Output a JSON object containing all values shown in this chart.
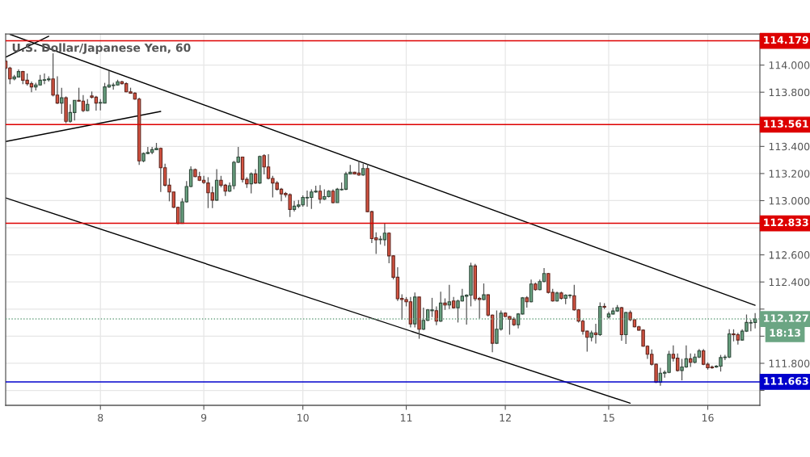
{
  "chart_data": {
    "type": "candlestick",
    "title": "U.S. Dollar/Japanese Yen, 60",
    "ylim": [
      111.49,
      114.23
    ],
    "yticks": [
      {
        "value": 111.6,
        "label": null
      },
      {
        "value": 111.8,
        "label": "111.800"
      },
      {
        "value": 112.0,
        "label": null
      },
      {
        "value": 112.2,
        "label": null
      },
      {
        "value": 112.4,
        "label": "112.400"
      },
      {
        "value": 112.6,
        "label": "112.600"
      },
      {
        "value": 112.8,
        "label": null
      },
      {
        "value": 113.0,
        "label": "113.000"
      },
      {
        "value": 113.2,
        "label": "113.200"
      },
      {
        "value": 113.4,
        "label": "113.400"
      },
      {
        "value": 113.6,
        "label": null
      },
      {
        "value": 113.8,
        "label": "113.800"
      },
      {
        "value": 114.0,
        "label": "114.000"
      }
    ],
    "grid": true,
    "categories": [
      null,
      null,
      null,
      null,
      null,
      null,
      null,
      null,
      null,
      null,
      null,
      null,
      null,
      null,
      null,
      null,
      null,
      null,
      null,
      null,
      null,
      null,
      "8",
      null,
      null,
      null,
      null,
      null,
      null,
      null,
      null,
      null,
      null,
      null,
      null,
      null,
      null,
      null,
      null,
      null,
      null,
      null,
      null,
      null,
      null,
      null,
      "9",
      null,
      null,
      null,
      null,
      null,
      null,
      null,
      null,
      null,
      null,
      null,
      null,
      null,
      null,
      null,
      null,
      null,
      null,
      null,
      null,
      null,
      null,
      "10",
      null,
      null,
      null,
      null,
      null,
      null,
      null,
      null,
      null,
      null,
      null,
      null,
      null,
      null,
      null,
      null,
      null,
      null,
      null,
      null,
      null,
      null,
      null,
      "11",
      null,
      null,
      null,
      null,
      null,
      null,
      null,
      null,
      null,
      null,
      null,
      null,
      null,
      null,
      null,
      null,
      null,
      null,
      null,
      null,
      null,
      null,
      "12",
      null,
      null,
      null,
      null,
      null,
      null,
      null,
      null,
      null,
      null,
      null,
      null,
      null,
      null,
      null,
      null,
      null,
      null,
      null,
      null,
      null,
      null,
      null,
      "15",
      null,
      null,
      null,
      null,
      null,
      null,
      null,
      null,
      null,
      null,
      null,
      null,
      null,
      null,
      null,
      null,
      null,
      null,
      null,
      null,
      null,
      null,
      "16",
      null,
      null,
      null,
      null,
      null,
      null,
      null,
      null,
      null,
      null,
      null
    ],
    "colors": [
      "#d75442",
      "#d75442",
      "#6ba583",
      "#6ba583",
      "#d75442",
      "#d75442",
      "#d75442",
      "#6ba583",
      "#6ba583",
      "#6ba583",
      "#6ba583",
      "#d75442",
      "#d75442",
      "#6ba583",
      "#d75442",
      "#6ba583",
      "#6ba583",
      "#d75442",
      "#d75442",
      "#6ba583",
      "#d75442",
      "#d75442",
      "#6ba583",
      "#6ba583",
      "#6ba583",
      "#6ba583",
      "#6ba583",
      "#d75442",
      "#d75442",
      "#d75442",
      "#d75442",
      "#d75442",
      "#6ba583",
      "#6ba583",
      "#6ba583",
      "#6ba583",
      "#d75442",
      "#d75442",
      "#d75442",
      "#d75442",
      "#d75442",
      "#6ba583",
      "#6ba583",
      "#6ba583",
      "#d75442",
      "#d75442",
      "#d75442",
      "#d75442",
      "#d75442",
      "#6ba583",
      "#d75442",
      "#d75442",
      "#6ba583",
      "#6ba583",
      "#6ba583",
      "#d75442",
      "#d75442",
      "#6ba583",
      "#d75442",
      "#6ba583",
      "#d75442",
      "#d75442",
      "#d75442",
      "#d75442",
      "#d75442",
      "#d75442",
      "#d75442",
      "#6ba583",
      "#6ba583",
      "#6ba583",
      "#6ba583",
      "#6ba583",
      "#6ba583",
      "#d75442",
      "#6ba583",
      "#6ba583",
      "#d75442",
      "#6ba583",
      "#6ba583",
      "#6ba583",
      "#6ba583",
      "#d75442",
      "#d75442",
      "#6ba583",
      "#d75442",
      "#d75442",
      "#d75442",
      "#6ba583",
      "#6ba583",
      "#d75442",
      "#d75442",
      "#d75442",
      "#d75442",
      "#d75442",
      "#d75442",
      "#6ba583",
      "#d75442",
      "#6ba583",
      "#6ba583",
      "#6ba583",
      "#d75442",
      "#6ba583",
      "#d75442",
      "#6ba583",
      "#d75442",
      "#6ba583",
      "#6ba583",
      "#6ba583",
      "#6ba583",
      "#d75442",
      "#d75442",
      "#6ba583",
      "#d75442",
      "#d75442",
      "#6ba583",
      "#6ba583",
      "#d75442",
      "#d75442",
      "#d75442",
      "#6ba583",
      "#6ba583",
      "#d75442",
      "#6ba583",
      "#d75442",
      "#6ba583",
      "#6ba583",
      "#d75442",
      "#d75442",
      "#6ba583",
      "#d75442",
      "#6ba583",
      "#6ba583",
      "#d75442",
      "#d75442",
      "#d75442",
      "#d75442",
      "#6ba583",
      "#d75442",
      "#6ba583",
      "#d75442",
      "#6ba583",
      "#6ba583",
      "#6ba583",
      "#d75442",
      "#6ba583",
      "#d75442",
      "#d75442",
      "#d75442",
      "#d75442",
      "#d75442",
      "#d75442",
      "#d75442",
      "#6ba583",
      "#6ba583",
      "#6ba583",
      "#d75442",
      "#d75442",
      "#6ba583",
      "#6ba583",
      "#d75442",
      "#6ba583",
      "#6ba583",
      "#d75442",
      "#d75442",
      "#d75442",
      "#6ba583",
      "#6ba583",
      "#6ba583",
      "#6ba583",
      "#d75442",
      "#d75442",
      "#6ba583",
      "#6ba583",
      "#6ba583",
      "#6ba583"
    ],
    "ohlc": [
      [
        114.028,
        114.038,
        113.968,
        113.978
      ],
      [
        113.978,
        113.988,
        113.859,
        113.898
      ],
      [
        113.898,
        113.928,
        113.888,
        113.912
      ],
      [
        113.912,
        113.968,
        113.908,
        113.952
      ],
      [
        113.952,
        113.958,
        113.859,
        113.888
      ],
      [
        113.888,
        113.938,
        113.849,
        113.863
      ],
      [
        113.863,
        113.879,
        113.799,
        113.839
      ],
      [
        113.839,
        113.869,
        113.813,
        113.853
      ],
      [
        113.853,
        113.928,
        113.849,
        113.888
      ],
      [
        113.888,
        113.938,
        113.859,
        113.892
      ],
      [
        113.892,
        113.918,
        113.879,
        113.898
      ],
      [
        113.898,
        114.087,
        113.769,
        113.779
      ],
      [
        113.779,
        113.918,
        113.714,
        113.72
      ],
      [
        113.72,
        113.833,
        113.64,
        113.759
      ],
      [
        113.759,
        113.769,
        113.571,
        113.585
      ],
      [
        113.585,
        113.71,
        113.575,
        113.65
      ],
      [
        113.65,
        113.74,
        113.591,
        113.74
      ],
      [
        113.74,
        113.833,
        113.73,
        113.734
      ],
      [
        113.734,
        113.779,
        113.654,
        113.664
      ],
      [
        113.664,
        113.749,
        113.66,
        113.71
      ],
      [
        113.773,
        113.805,
        113.753,
        113.763
      ],
      [
        113.763,
        113.773,
        113.664,
        113.72
      ],
      [
        113.72,
        113.749,
        113.666,
        113.724
      ],
      [
        113.72,
        113.869,
        113.72,
        113.839
      ],
      [
        113.839,
        113.958,
        113.833,
        113.853
      ],
      [
        113.849,
        113.869,
        113.819,
        113.853
      ],
      [
        113.853,
        113.892,
        113.849,
        113.877
      ],
      [
        113.877,
        113.884,
        113.857,
        113.863
      ],
      [
        113.863,
        113.873,
        113.799,
        113.803
      ],
      [
        113.803,
        113.833,
        113.789,
        113.793
      ],
      [
        113.793,
        113.799,
        113.745,
        113.749
      ],
      [
        113.749,
        113.759,
        113.263,
        113.293
      ],
      [
        113.293,
        113.356,
        113.283,
        113.348
      ],
      [
        113.348,
        113.396,
        113.342,
        113.356
      ],
      [
        113.356,
        113.396,
        113.342,
        113.376
      ],
      [
        113.376,
        113.426,
        113.372,
        113.386
      ],
      [
        113.386,
        113.392,
        113.064,
        113.243
      ],
      [
        113.243,
        113.273,
        113.104,
        113.114
      ],
      [
        113.114,
        113.164,
        112.995,
        113.064
      ],
      [
        113.064,
        113.064,
        112.945,
        112.951
      ],
      [
        112.951,
        112.955,
        112.826,
        112.832
      ],
      [
        112.832,
        113.018,
        112.832,
        112.991
      ],
      [
        112.991,
        113.144,
        112.985,
        113.104
      ],
      [
        113.104,
        113.253,
        113.098,
        113.229
      ],
      [
        113.229,
        113.237,
        113.173,
        113.177
      ],
      [
        113.177,
        113.213,
        113.144,
        113.15
      ],
      [
        113.15,
        113.183,
        113.124,
        113.134
      ],
      [
        113.13,
        113.173,
        112.945,
        113.058
      ],
      [
        113.058,
        113.104,
        112.945,
        113.004
      ],
      [
        113.004,
        113.233,
        112.998,
        113.15
      ],
      [
        113.15,
        113.183,
        113.098,
        113.114
      ],
      [
        113.114,
        113.124,
        113.034,
        113.07
      ],
      [
        113.07,
        113.134,
        113.064,
        113.11
      ],
      [
        113.11,
        113.293,
        113.084,
        113.283
      ],
      [
        113.283,
        113.396,
        113.277,
        113.322
      ],
      [
        113.322,
        113.322,
        113.134,
        113.157
      ],
      [
        113.157,
        113.173,
        113.094,
        113.124
      ],
      [
        113.124,
        113.209,
        113.054,
        113.197
      ],
      [
        113.197,
        113.233,
        113.124,
        113.13
      ],
      [
        113.13,
        113.332,
        113.124,
        113.326
      ],
      [
        113.332,
        113.342,
        113.193,
        113.249
      ],
      [
        113.249,
        113.342,
        113.157,
        113.164
      ],
      [
        113.164,
        113.183,
        113.024,
        113.13
      ],
      [
        113.13,
        113.144,
        113.074,
        113.084
      ],
      [
        113.084,
        113.094,
        112.995,
        113.05
      ],
      [
        113.054,
        113.064,
        113.024,
        113.044
      ],
      [
        113.044,
        113.054,
        112.879,
        112.935
      ],
      [
        112.935,
        112.998,
        112.919,
        112.959
      ],
      [
        112.959,
        113.004,
        112.945,
        112.969
      ],
      [
        112.969,
        113.038,
        112.955,
        113.024
      ],
      [
        113.02,
        113.074,
        112.955,
        113.024
      ],
      [
        113.024,
        113.084,
        112.939,
        113.064
      ],
      [
        113.064,
        113.11,
        113.058,
        113.07
      ],
      [
        113.07,
        113.114,
        112.979,
        113.01
      ],
      [
        113.01,
        113.084,
        113.004,
        113.03
      ],
      [
        113.03,
        113.078,
        113.024,
        113.07
      ],
      [
        113.07,
        113.084,
        112.979,
        112.985
      ],
      [
        112.985,
        113.094,
        112.985,
        113.084
      ],
      [
        113.08,
        113.134,
        113.074,
        113.084
      ],
      [
        113.084,
        113.213,
        113.078,
        113.197
      ],
      [
        113.197,
        113.263,
        113.193,
        113.209
      ],
      [
        113.209,
        113.213,
        113.193,
        113.197
      ],
      [
        113.203,
        113.293,
        113.183,
        113.189
      ],
      [
        113.189,
        113.273,
        113.183,
        113.237
      ],
      [
        113.237,
        113.269,
        112.915,
        112.919
      ],
      [
        112.919,
        112.925,
        112.687,
        112.72
      ],
      [
        112.726,
        112.766,
        112.607,
        112.712
      ],
      [
        112.712,
        112.74,
        112.677,
        112.716
      ],
      [
        112.712,
        112.836,
        112.667,
        112.76
      ],
      [
        112.76,
        112.766,
        112.538,
        112.593
      ],
      [
        112.593,
        112.597,
        112.419,
        112.435
      ],
      [
        112.435,
        112.508,
        112.26,
        112.276
      ],
      [
        112.279,
        112.309,
        112.121,
        112.27
      ],
      [
        112.27,
        112.289,
        112.22,
        112.254
      ],
      [
        112.254,
        112.289,
        112.065,
        112.091
      ],
      [
        112.091,
        112.323,
        112.065,
        112.289
      ],
      [
        112.289,
        112.289,
        111.981,
        112.051
      ],
      [
        112.051,
        112.21,
        112.045,
        112.117
      ],
      [
        112.117,
        112.2,
        112.111,
        112.194
      ],
      [
        112.188,
        112.283,
        112.141,
        112.194
      ],
      [
        112.188,
        112.22,
        112.081,
        112.111
      ],
      [
        112.111,
        112.329,
        112.105,
        112.244
      ],
      [
        112.244,
        112.279,
        112.194,
        112.23
      ],
      [
        112.23,
        112.379,
        112.2,
        112.254
      ],
      [
        112.26,
        112.289,
        112.204,
        112.21
      ],
      [
        112.21,
        112.27,
        112.101,
        112.26
      ],
      [
        112.26,
        112.349,
        112.256,
        112.295
      ],
      [
        112.295,
        112.309,
        112.085,
        112.303
      ],
      [
        112.303,
        112.542,
        112.22,
        112.518
      ],
      [
        112.518,
        112.534,
        112.26,
        112.276
      ],
      [
        112.279,
        112.289,
        112.131,
        112.27
      ],
      [
        112.27,
        112.389,
        112.264,
        112.305
      ],
      [
        112.305,
        112.309,
        112.145,
        112.156
      ],
      [
        112.156,
        112.16,
        111.882,
        111.948
      ],
      [
        111.948,
        112.19,
        111.942,
        112.051
      ],
      [
        112.051,
        112.19,
        112.041,
        112.17
      ],
      [
        112.17,
        112.176,
        112.141,
        112.145
      ],
      [
        112.145,
        112.15,
        112.011,
        112.125
      ],
      [
        112.125,
        112.141,
        112.075,
        112.085
      ],
      [
        112.085,
        112.17,
        112.057,
        112.164
      ],
      [
        112.164,
        112.289,
        112.16,
        112.283
      ],
      [
        112.283,
        112.295,
        112.21,
        112.254
      ],
      [
        112.254,
        112.418,
        112.25,
        112.385
      ],
      [
        112.385,
        112.395,
        112.335,
        112.343
      ],
      [
        112.343,
        112.418,
        112.339,
        112.403
      ],
      [
        112.403,
        112.502,
        112.399,
        112.462
      ],
      [
        112.462,
        112.466,
        112.315,
        112.323
      ],
      [
        112.323,
        112.349,
        112.256,
        112.26
      ],
      [
        112.26,
        112.329,
        112.256,
        112.319
      ],
      [
        112.319,
        112.329,
        112.27,
        112.279
      ],
      [
        112.279,
        112.309,
        112.236,
        112.303
      ],
      [
        112.299,
        112.309,
        112.279,
        112.303
      ],
      [
        112.299,
        112.379,
        112.188,
        112.194
      ],
      [
        112.194,
        112.2,
        112.101,
        112.111
      ],
      [
        112.111,
        112.121,
        112.011,
        112.037
      ],
      [
        112.037,
        112.041,
        111.886,
        111.992
      ],
      [
        111.992,
        112.041,
        111.962,
        112.025
      ],
      [
        112.025,
        112.091,
        111.946,
        112.011
      ],
      [
        112.011,
        112.25,
        112.002,
        112.22
      ],
      [
        112.22,
        112.244,
        112.2,
        112.214
      ],
      [
        112.141,
        112.18,
        112.131,
        112.164
      ],
      [
        112.164,
        112.21,
        112.16,
        112.186
      ],
      [
        112.186,
        112.23,
        112.18,
        112.21
      ],
      [
        112.21,
        112.216,
        111.966,
        112.011
      ],
      [
        112.011,
        112.18,
        111.942,
        112.174
      ],
      [
        112.174,
        112.19,
        112.111,
        112.121
      ],
      [
        112.121,
        112.125,
        112.065,
        112.069
      ],
      [
        112.069,
        112.077,
        112.041,
        112.045
      ],
      [
        112.045,
        112.051,
        111.922,
        111.926
      ],
      [
        111.926,
        111.932,
        111.833,
        111.867
      ],
      [
        111.867,
        111.902,
        111.783,
        111.793
      ],
      [
        111.793,
        111.799,
        111.654,
        111.66
      ],
      [
        111.66,
        111.767,
        111.634,
        111.727
      ],
      [
        111.727,
        111.747,
        111.694,
        111.733
      ],
      [
        111.733,
        111.892,
        111.727,
        111.867
      ],
      [
        111.867,
        111.932,
        111.813,
        111.838
      ],
      [
        111.838,
        111.872,
        111.739,
        111.747
      ],
      [
        111.747,
        111.833,
        111.674,
        111.773
      ],
      [
        111.773,
        111.932,
        111.767,
        111.833
      ],
      [
        111.833,
        111.872,
        111.773,
        111.807
      ],
      [
        111.807,
        111.872,
        111.799,
        111.846
      ],
      [
        111.846,
        111.906,
        111.838,
        111.892
      ],
      [
        111.892,
        111.906,
        111.787,
        111.793
      ],
      [
        111.793,
        111.807,
        111.753,
        111.767
      ],
      [
        111.773,
        111.783,
        111.759,
        111.767
      ],
      [
        111.773,
        111.787,
        111.767,
        111.779
      ],
      [
        111.779,
        111.862,
        111.739,
        111.842
      ],
      [
        111.842,
        111.862,
        111.823,
        111.846
      ],
      [
        111.846,
        112.051,
        111.838,
        112.017
      ],
      [
        112.017,
        112.051,
        111.962,
        112.011
      ],
      [
        112.011,
        112.025,
        111.938,
        111.972
      ],
      [
        111.972,
        112.051,
        111.966,
        112.037
      ],
      [
        112.037,
        112.16,
        112.031,
        112.101
      ],
      [
        112.097,
        112.121,
        112.037,
        112.101
      ],
      [
        112.101,
        112.17,
        112.057,
        112.127
      ]
    ],
    "series": [
      {
        "type": "line",
        "color": "#000000",
        "values": [
          null,
          114.227,
          null,
          null,
          null,
          null,
          null,
          null,
          null,
          null,
          null,
          null,
          null,
          null,
          null,
          null,
          null,
          null,
          null,
          null,
          null,
          null,
          null,
          null,
          null,
          null,
          null,
          null,
          null,
          null,
          null,
          null,
          null,
          null,
          null,
          null,
          null,
          null,
          null,
          null,
          null,
          null,
          null,
          null,
          null,
          null,
          null,
          null,
          null,
          null,
          null,
          null,
          null,
          null,
          null,
          null,
          null,
          null,
          null,
          null,
          null,
          null,
          null,
          null,
          null,
          null,
          null,
          null,
          null,
          null,
          null,
          null,
          null,
          null,
          null,
          null,
          null,
          null,
          null,
          null,
          null,
          null,
          null,
          null,
          null,
          null,
          null,
          null,
          null,
          null,
          null,
          null,
          null,
          null,
          null,
          null,
          null,
          null,
          null,
          null,
          null,
          null,
          null,
          null,
          null,
          null,
          null,
          null,
          null,
          null,
          null,
          null,
          null,
          null,
          null,
          null,
          null,
          null,
          null,
          null,
          null,
          null,
          null,
          null,
          null,
          null,
          null,
          null,
          null,
          null,
          null,
          null,
          null,
          null,
          null,
          null,
          null,
          null,
          null,
          null,
          null,
          null,
          null,
          null,
          null,
          null,
          null,
          null,
          null,
          null,
          null,
          null,
          null,
          null,
          null,
          null,
          null,
          null,
          null,
          null,
          null,
          null,
          null,
          null,
          null,
          null,
          null,
          null,
          null,
          null,
          null,
          null,
          null,
          null,
          112.228
        ]
      },
      {
        "type": "line",
        "color": "#000000",
        "values": [
          113.02,
          null,
          null,
          null,
          null,
          null,
          null,
          null,
          null,
          null,
          null,
          null,
          null,
          null,
          null,
          null,
          null,
          null,
          null,
          null,
          null,
          null,
          null,
          null,
          null,
          null,
          null,
          null,
          null,
          null,
          null,
          null,
          null,
          null,
          null,
          null,
          null,
          null,
          null,
          null,
          null,
          null,
          null,
          null,
          null,
          null,
          null,
          null,
          null,
          null,
          null,
          null,
          null,
          null,
          null,
          null,
          null,
          null,
          null,
          null,
          null,
          null,
          null,
          null,
          null,
          null,
          null,
          null,
          null,
          null,
          null,
          null,
          null,
          null,
          null,
          null,
          null,
          null,
          null,
          null,
          null,
          null,
          null,
          null,
          null,
          null,
          null,
          null,
          null,
          null,
          null,
          null,
          null,
          null,
          null,
          null,
          null,
          null,
          null,
          null,
          null,
          null,
          null,
          null,
          null,
          null,
          null,
          null,
          null,
          null,
          null,
          null,
          null,
          null,
          null,
          null,
          null,
          null,
          null,
          null,
          null,
          null,
          null,
          null,
          null,
          null,
          null,
          null,
          null,
          null,
          null,
          null,
          null,
          null,
          null,
          null,
          null,
          null,
          null,
          null,
          null,
          null,
          null,
          null,
          null,
          111.506,
          null,
          null,
          null,
          null,
          null,
          null,
          null,
          null,
          null,
          null,
          null,
          null,
          null,
          null,
          null,
          null,
          null,
          null,
          null,
          null,
          null,
          null,
          null,
          null,
          null,
          null,
          null,
          null,
          null
        ]
      },
      {
        "type": "line",
        "color": "#000000",
        "values": [
          113.436,
          null,
          null,
          null,
          null,
          null,
          null,
          null,
          null,
          null,
          null,
          null,
          null,
          null,
          null,
          null,
          null,
          null,
          null,
          null,
          null,
          null,
          null,
          null,
          null,
          null,
          null,
          null,
          null,
          null,
          null,
          null,
          null,
          null,
          null,
          null,
          113.658,
          null,
          null,
          null,
          null,
          null,
          null,
          null,
          null,
          null,
          null,
          null,
          null,
          null,
          null,
          null,
          null,
          null,
          null,
          null,
          null,
          null,
          null,
          null,
          null,
          null,
          null,
          null,
          null,
          null,
          null,
          null,
          null,
          null,
          null,
          null,
          null,
          null,
          null,
          null,
          null,
          null,
          null,
          null,
          null,
          null,
          null,
          null,
          null,
          null,
          null,
          null,
          null,
          null,
          null,
          null,
          null,
          null,
          null,
          null,
          null,
          null,
          null,
          null,
          null,
          null,
          null,
          null,
          null,
          null,
          null,
          null,
          null,
          null,
          null,
          null,
          null,
          null,
          null,
          null,
          null,
          null,
          null,
          null,
          null,
          null,
          null,
          null,
          null,
          null,
          null,
          null,
          null,
          null,
          null,
          null,
          null,
          null,
          null,
          null,
          null,
          null,
          null,
          null,
          null,
          null,
          null,
          null,
          null,
          null,
          null,
          null,
          null,
          null,
          null,
          null,
          null,
          null,
          null,
          null,
          null,
          null,
          null,
          null,
          null,
          null,
          null,
          null,
          null,
          null,
          null,
          null,
          null,
          null,
          null,
          null,
          null,
          null,
          null
        ]
      },
      {
        "type": "line",
        "color": "#000000",
        "values": [
          114.058,
          null,
          null,
          null,
          null,
          null,
          null,
          null,
          null,
          null,
          114.213,
          null,
          null,
          null,
          null,
          null,
          null,
          null,
          null,
          null,
          null,
          null,
          null,
          null,
          null,
          null,
          null,
          null,
          null,
          null,
          null,
          null,
          null,
          null,
          null,
          null,
          null,
          null,
          null,
          null,
          null,
          null,
          null,
          null,
          null,
          null,
          null,
          null,
          null,
          null,
          null,
          null,
          null,
          null,
          null,
          null,
          null,
          null,
          null,
          null,
          null,
          null,
          null,
          null,
          null,
          null,
          null,
          null,
          null,
          null,
          null,
          null,
          null,
          null,
          null,
          null,
          null,
          null,
          null,
          null,
          null,
          null,
          null,
          null,
          null,
          null,
          null,
          null,
          null,
          null,
          null,
          null,
          null,
          null,
          null,
          null,
          null,
          null,
          null,
          null,
          null,
          null,
          null,
          null,
          null,
          null,
          null,
          null,
          null,
          null,
          null,
          null,
          null,
          null,
          null,
          null,
          null,
          null,
          null,
          null,
          null,
          null,
          null,
          null,
          null,
          null,
          null,
          null,
          null,
          null,
          null,
          null,
          null,
          null,
          null,
          null,
          null,
          null,
          null,
          null,
          null,
          null,
          null,
          null,
          null,
          null,
          null,
          null,
          null,
          null,
          null,
          null,
          null,
          null,
          null,
          null,
          null,
          null,
          null,
          null,
          null,
          null,
          null,
          null,
          null,
          null,
          null,
          null,
          null,
          null,
          null,
          null,
          null,
          null,
          null
        ]
      }
    ],
    "ref_lines": [
      {
        "axis": "y",
        "value": 114.179,
        "label": "114.179",
        "color": "#dd0000"
      },
      {
        "axis": "y",
        "value": 113.561,
        "label": "113.561",
        "color": "#dd0000"
      },
      {
        "axis": "y",
        "value": 112.833,
        "label": "112.833",
        "color": "#dd0000"
      },
      {
        "axis": "y",
        "value": 112.127,
        "label": "112.127",
        "color": "#6ba583",
        "line_style": "dotted"
      },
      {
        "axis": "y",
        "value": 111.663,
        "label": "111.663",
        "color": "#0000cc"
      }
    ],
    "annotations": [
      "18:13"
    ]
  }
}
